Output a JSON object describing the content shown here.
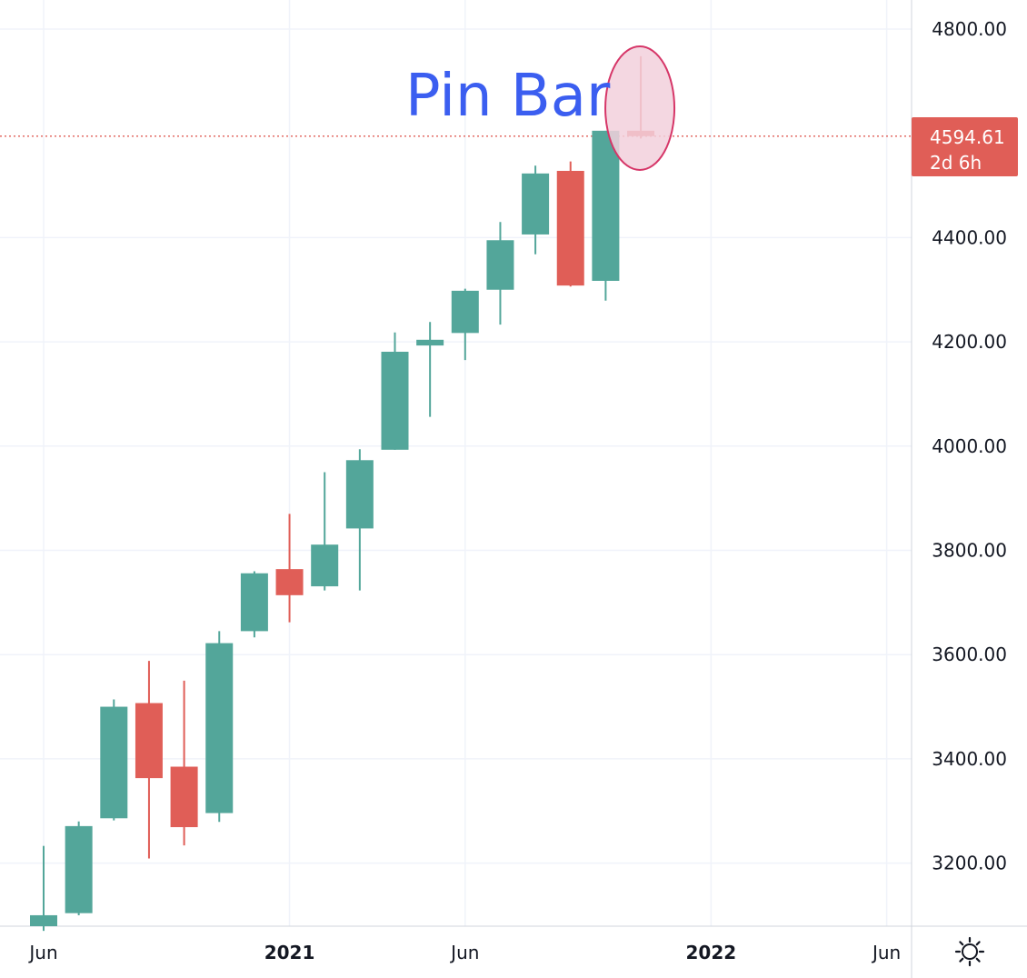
{
  "chart_data": {
    "type": "candlestick",
    "timeframe": "monthly",
    "ylim": [
      3080,
      4870
    ],
    "y_ticks": [
      3200,
      3400,
      3600,
      3800,
      4000,
      4200,
      4400,
      4800
    ],
    "y_tick_labels": [
      "3200.00",
      "3400.00",
      "3600.00",
      "3800.00",
      "4000.00",
      "4200.00",
      "4400.00",
      "4800.00"
    ],
    "x_ticks": [
      {
        "label": "Jun",
        "index": 0,
        "bold": false
      },
      {
        "label": "2021",
        "index": 7,
        "bold": true
      },
      {
        "label": "Jun",
        "index": 12,
        "bold": false
      },
      {
        "label": "2022",
        "index": 19,
        "bold": true
      },
      {
        "label": "Jun",
        "index": 24,
        "bold": false
      }
    ],
    "candles": [
      {
        "i": 0,
        "open": 3075,
        "high": 3233,
        "low": 3070,
        "close": 3100
      },
      {
        "i": 1,
        "open": 3104,
        "high": 3280,
        "low": 3100,
        "close": 3271
      },
      {
        "i": 2,
        "open": 3286,
        "high": 3514,
        "low": 3282,
        "close": 3500
      },
      {
        "i": 3,
        "open": 3507,
        "high": 3588,
        "low": 3209,
        "close": 3363
      },
      {
        "i": 4,
        "open": 3385,
        "high": 3550,
        "low": 3234,
        "close": 3269
      },
      {
        "i": 5,
        "open": 3296,
        "high": 3645,
        "low": 3279,
        "close": 3622
      },
      {
        "i": 6,
        "open": 3645,
        "high": 3760,
        "low": 3633,
        "close": 3756
      },
      {
        "i": 7,
        "open": 3764,
        "high": 3870,
        "low": 3662,
        "close": 3714
      },
      {
        "i": 8,
        "open": 3731,
        "high": 3950,
        "low": 3723,
        "close": 3811
      },
      {
        "i": 9,
        "open": 3842,
        "high": 3994,
        "low": 3723,
        "close": 3973
      },
      {
        "i": 10,
        "open": 3993,
        "high": 4218,
        "low": 3993,
        "close": 4181
      },
      {
        "i": 11,
        "open": 4193,
        "high": 4238,
        "low": 4056,
        "close": 4204
      },
      {
        "i": 12,
        "open": 4217,
        "high": 4302,
        "low": 4165,
        "close": 4298
      },
      {
        "i": 13,
        "open": 4300,
        "high": 4430,
        "low": 4233,
        "close": 4395
      },
      {
        "i": 14,
        "open": 4406,
        "high": 4538,
        "low": 4368,
        "close": 4523
      },
      {
        "i": 15,
        "open": 4528,
        "high": 4546,
        "low": 4306,
        "close": 4308
      },
      {
        "i": 16,
        "open": 4317,
        "high": 4605,
        "low": 4279,
        "close": 4605
      },
      {
        "i": 17,
        "open": 4605,
        "high": 4748,
        "low": 4590,
        "close": 4594.61
      }
    ],
    "current_price": {
      "value": 4594.61,
      "label": "4594.61",
      "countdown": "2d 6h"
    },
    "annotation": {
      "text": "Pin Bar",
      "target_index": 17
    }
  },
  "colors": {
    "up": "#53a69a",
    "down": "#e05e57",
    "grid": "#f0f3fa",
    "axis_border": "#d1d4dc",
    "price_line": "#e05e57",
    "price_label_bg": "#e05e57",
    "annotation_text": "#3b5ef0",
    "highlight_fill": "#f2d0dc",
    "highlight_stroke": "#d63668"
  },
  "settings": {
    "icon": "gear-icon"
  }
}
